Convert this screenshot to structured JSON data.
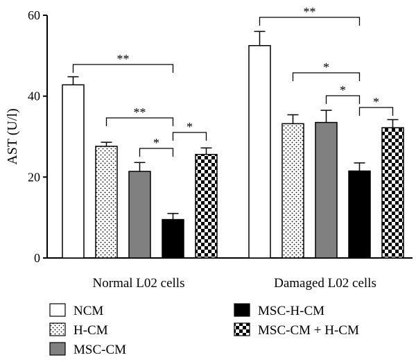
{
  "chart_data": {
    "type": "bar",
    "title": "",
    "xlabel": "",
    "ylabel": "AST (U/l)",
    "ylim": [
      0,
      60
    ],
    "yticks": [
      "0",
      "20",
      "40",
      "60"
    ],
    "grid": false,
    "legend_position": "bottom",
    "categories": [
      "Normal L02 cells",
      "Damaged L02 cells"
    ],
    "series": [
      {
        "name": "NCM",
        "pattern": "white",
        "values": [
          42.8,
          52.5
        ],
        "errors": [
          2.0,
          3.5
        ]
      },
      {
        "name": "H-CM",
        "pattern": "dots",
        "values": [
          27.6,
          33.2
        ],
        "errors": [
          1.0,
          2.2
        ]
      },
      {
        "name": "MSC-CM",
        "pattern": "gray",
        "values": [
          21.4,
          33.5
        ],
        "errors": [
          2.2,
          3.0
        ]
      },
      {
        "name": "MSC-H-CM",
        "pattern": "black",
        "values": [
          9.5,
          21.5
        ],
        "errors": [
          1.5,
          2.0
        ]
      },
      {
        "name": "MSC-CM + H-CM",
        "pattern": "checker",
        "values": [
          25.6,
          32.2
        ],
        "errors": [
          1.6,
          2.0
        ]
      }
    ],
    "colors": {
      "gray": "#808080",
      "black": "#000000",
      "white": "#ffffff"
    },
    "significance": [
      {
        "group": 0,
        "from": 0,
        "to": 3,
        "label": "**"
      },
      {
        "group": 0,
        "from": 1,
        "to": 3,
        "label": "**"
      },
      {
        "group": 0,
        "from": 2,
        "to": 3,
        "label": "*"
      },
      {
        "group": 0,
        "from": 3,
        "to": 4,
        "label": "*"
      },
      {
        "group": 1,
        "from": 0,
        "to": 3,
        "label": "**"
      },
      {
        "group": 1,
        "from": 1,
        "to": 3,
        "label": "*"
      },
      {
        "group": 1,
        "from": 2,
        "to": 3,
        "label": "*"
      },
      {
        "group": 1,
        "from": 3,
        "to": 4,
        "label": "*"
      }
    ]
  }
}
